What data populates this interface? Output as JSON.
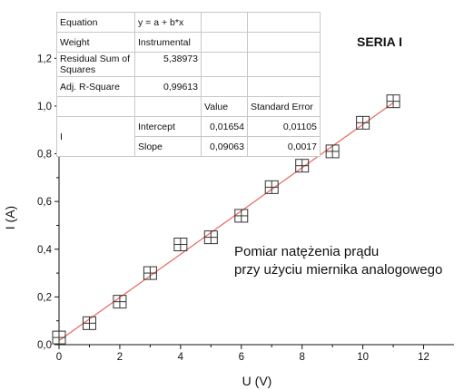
{
  "chart_data": {
    "type": "scatter",
    "series_label": "SERIA I",
    "xlabel": "U (V)",
    "ylabel": "I (A)",
    "xlim": [
      0,
      13
    ],
    "ylim": [
      0,
      1.3
    ],
    "x_ticks": [
      "0",
      "2",
      "4",
      "6",
      "8",
      "10",
      "12"
    ],
    "y_ticks": [
      "0,0",
      "0,2",
      "0,4",
      "0,6",
      "0,8",
      "1,0",
      "1,2"
    ],
    "x_tick_values": [
      0,
      2,
      4,
      6,
      8,
      10,
      12
    ],
    "y_tick_values": [
      0,
      0.2,
      0.4,
      0.6,
      0.8,
      1.0,
      1.2
    ],
    "x": [
      0,
      1,
      2,
      3,
      4,
      5,
      6,
      7,
      8,
      9,
      10,
      11
    ],
    "y": [
      0.03,
      0.09,
      0.18,
      0.3,
      0.42,
      0.45,
      0.54,
      0.66,
      0.75,
      0.81,
      0.93,
      1.02
    ],
    "fit_line": {
      "intercept": 0.01654,
      "slope": 0.09063,
      "x_range": [
        0,
        11
      ],
      "color": "#e8685c"
    },
    "marker_color": "#333333",
    "annotation": [
      "Pomiar natężenia prądu",
      "przy użyciu miernika analogowego"
    ],
    "grid": false,
    "legend": "none"
  },
  "fit_table": {
    "equation_label": "Equation",
    "equation_value": "y = a + b*x",
    "weight_label": "Weight",
    "weight_value": "Instrumental",
    "rss_label": "Residual Sum of Squares",
    "rss_value": "5,38973",
    "adjr_label": "Adj. R-Square",
    "adjr_value": "0,99613",
    "value_header": "Value",
    "stderr_header": "Standard Error",
    "group_label": "I",
    "intercept_label": "Intercept",
    "intercept_value": "0,01654",
    "intercept_err": "0,01105",
    "slope_label": "Slope",
    "slope_value": "0,09063",
    "slope_err": "0,0017"
  }
}
